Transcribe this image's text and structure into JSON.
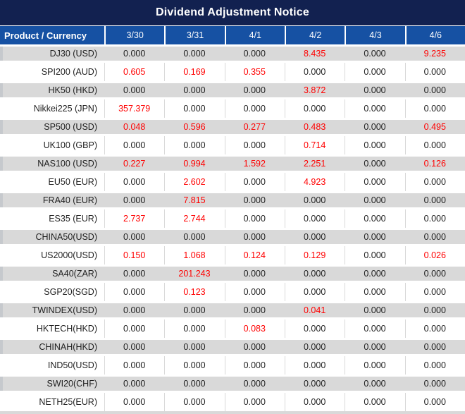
{
  "title": "Dividend Adjustment Notice",
  "colors": {
    "title_bar_bg": "#122150",
    "header_bg": "#1651A3",
    "row_stripe_bg": "#D9D9D9",
    "row_bg": "#FFFFFF",
    "header_text": "#FFFFFF",
    "value_text": "#1F1F1F",
    "highlight_value_text": "#FF0000"
  },
  "table": {
    "header": [
      "Product / Currency",
      "3/30",
      "3/31",
      "4/1",
      "4/2",
      "4/3",
      "4/6"
    ],
    "rows": [
      {
        "product": "DJ30 (USD)",
        "values": [
          "0.000",
          "0.000",
          "0.000",
          "8.435",
          "0.000",
          "9.235"
        ],
        "red": [
          false,
          false,
          false,
          true,
          false,
          true
        ]
      },
      {
        "product": "SPI200 (AUD)",
        "values": [
          "0.605",
          "0.169",
          "0.355",
          "0.000",
          "0.000",
          "0.000"
        ],
        "red": [
          true,
          true,
          true,
          false,
          false,
          false
        ]
      },
      {
        "product": "HK50 (HKD)",
        "values": [
          "0.000",
          "0.000",
          "0.000",
          "3.872",
          "0.000",
          "0.000"
        ],
        "red": [
          false,
          false,
          false,
          true,
          false,
          false
        ]
      },
      {
        "product": "Nikkei225 (JPN)",
        "values": [
          "357.379",
          "0.000",
          "0.000",
          "0.000",
          "0.000",
          "0.000"
        ],
        "red": [
          true,
          false,
          false,
          false,
          false,
          false
        ]
      },
      {
        "product": "SP500 (USD)",
        "values": [
          "0.048",
          "0.596",
          "0.277",
          "0.483",
          "0.000",
          "0.495"
        ],
        "red": [
          true,
          true,
          true,
          true,
          false,
          true
        ]
      },
      {
        "product": "UK100 (GBP)",
        "values": [
          "0.000",
          "0.000",
          "0.000",
          "0.714",
          "0.000",
          "0.000"
        ],
        "red": [
          false,
          false,
          false,
          true,
          false,
          false
        ]
      },
      {
        "product": "NAS100 (USD)",
        "values": [
          "0.227",
          "0.994",
          "1.592",
          "2.251",
          "0.000",
          "0.126"
        ],
        "red": [
          true,
          true,
          true,
          true,
          false,
          true
        ]
      },
      {
        "product": "EU50 (EUR)",
        "values": [
          "0.000",
          "2.602",
          "0.000",
          "4.923",
          "0.000",
          "0.000"
        ],
        "red": [
          false,
          true,
          false,
          true,
          false,
          false
        ]
      },
      {
        "product": "FRA40 (EUR)",
        "values": [
          "0.000",
          "7.815",
          "0.000",
          "0.000",
          "0.000",
          "0.000"
        ],
        "red": [
          false,
          true,
          false,
          false,
          false,
          false
        ]
      },
      {
        "product": "ES35 (EUR)",
        "values": [
          "2.737",
          "2.744",
          "0.000",
          "0.000",
          "0.000",
          "0.000"
        ],
        "red": [
          true,
          true,
          false,
          false,
          false,
          false
        ]
      },
      {
        "product": "CHINA50(USD)",
        "values": [
          "0.000",
          "0.000",
          "0.000",
          "0.000",
          "0.000",
          "0.000"
        ],
        "red": [
          false,
          false,
          false,
          false,
          false,
          false
        ]
      },
      {
        "product": "US2000(USD)",
        "values": [
          "0.150",
          "1.068",
          "0.124",
          "0.129",
          "0.000",
          "0.026"
        ],
        "red": [
          true,
          true,
          true,
          true,
          false,
          true
        ]
      },
      {
        "product": "SA40(ZAR)",
        "values": [
          "0.000",
          "201.243",
          "0.000",
          "0.000",
          "0.000",
          "0.000"
        ],
        "red": [
          false,
          true,
          false,
          false,
          false,
          false
        ]
      },
      {
        "product": "SGP20(SGD)",
        "values": [
          "0.000",
          "0.123",
          "0.000",
          "0.000",
          "0.000",
          "0.000"
        ],
        "red": [
          false,
          true,
          false,
          false,
          false,
          false
        ]
      },
      {
        "product": "TWINDEX(USD)",
        "values": [
          "0.000",
          "0.000",
          "0.000",
          "0.041",
          "0.000",
          "0.000"
        ],
        "red": [
          false,
          false,
          false,
          true,
          false,
          false
        ]
      },
      {
        "product": "HKTECH(HKD)",
        "values": [
          "0.000",
          "0.000",
          "0.083",
          "0.000",
          "0.000",
          "0.000"
        ],
        "red": [
          false,
          false,
          true,
          false,
          false,
          false
        ]
      },
      {
        "product": "CHINAH(HKD)",
        "values": [
          "0.000",
          "0.000",
          "0.000",
          "0.000",
          "0.000",
          "0.000"
        ],
        "red": [
          false,
          false,
          false,
          false,
          false,
          false
        ]
      },
      {
        "product": "IND50(USD)",
        "values": [
          "0.000",
          "0.000",
          "0.000",
          "0.000",
          "0.000",
          "0.000"
        ],
        "red": [
          false,
          false,
          false,
          false,
          false,
          false
        ]
      },
      {
        "product": "SWI20(CHF)",
        "values": [
          "0.000",
          "0.000",
          "0.000",
          "0.000",
          "0.000",
          "0.000"
        ],
        "red": [
          false,
          false,
          false,
          false,
          false,
          false
        ]
      },
      {
        "product": "NETH25(EUR)",
        "values": [
          "0.000",
          "0.000",
          "0.000",
          "0.000",
          "0.000",
          "0.000"
        ],
        "red": [
          false,
          false,
          false,
          false,
          false,
          false
        ]
      }
    ]
  }
}
